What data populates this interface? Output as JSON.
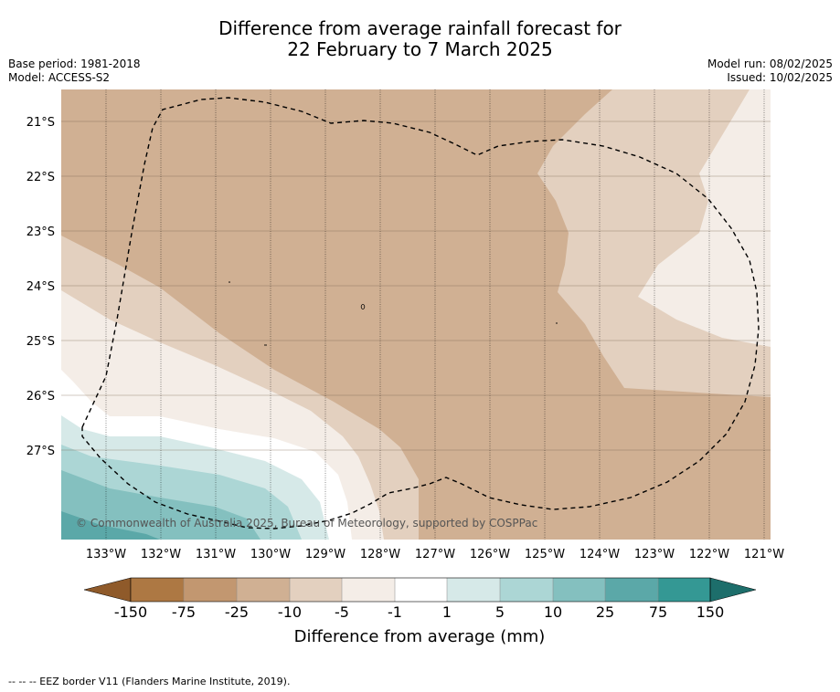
{
  "title": {
    "line1": "Difference from average rainfall forecast for",
    "line2": "22 February to 7 March 2025"
  },
  "meta_left": {
    "base_period": "Base period: 1981-2018",
    "model": "Model: ACCESS-S2"
  },
  "meta_right": {
    "model_run": "Model run: 08/02/2025",
    "issued": "Issued: 10/02/2025"
  },
  "map": {
    "lat_labels": [
      "21°S",
      "22°S",
      "23°S",
      "24°S",
      "25°S",
      "26°S",
      "27°S"
    ],
    "lon_labels": [
      "133°W",
      "132°W",
      "131°W",
      "130°W",
      "129°W",
      "128°W",
      "127°W",
      "126°W",
      "125°W",
      "124°W",
      "123°W",
      "122°W",
      "121°W"
    ],
    "copyright": "© Commonwealth of Australia 2025, Bureau of Meteorology, supported by COSPPac",
    "colors": {
      "lt_m150": "#8f5a2a",
      "m150_m75": "#ad7843",
      "m75_m25": "#c29770",
      "m25_m10": "#d0b093",
      "m10_m5": "#e3d0bf",
      "m5_m1": "#f4ede7",
      "m1_1": "#ffffff",
      "p1_5": "#d6e9e8",
      "p5_10": "#acd6d5",
      "p10_25": "#84c0bf",
      "p25_75": "#5ba8a8",
      "p75_150": "#349894",
      "gt_150": "#1d6e6b"
    }
  },
  "colorbar": {
    "ticks": [
      "-150",
      "-75",
      "-25",
      "-10",
      "-5",
      "-1",
      "1",
      "5",
      "10",
      "25",
      "75",
      "150"
    ],
    "label": "Difference from average (mm)"
  },
  "footnote": "--  --  -- EEZ border V11 (Flanders Marine Institute, 2019)."
}
